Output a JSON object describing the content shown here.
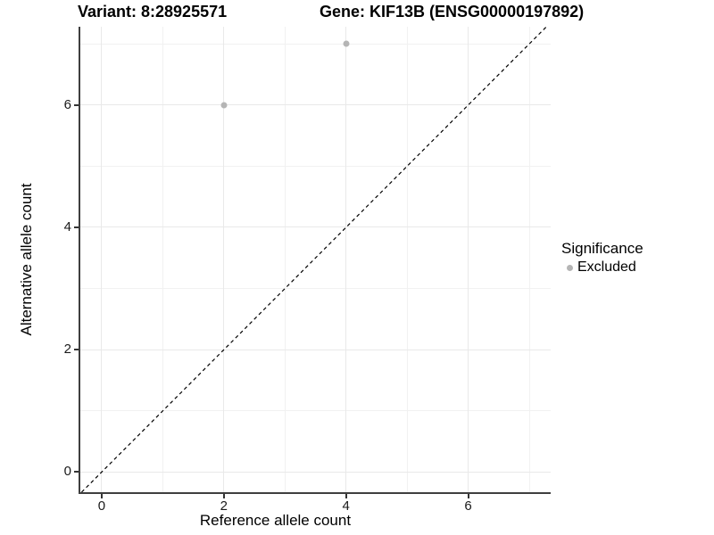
{
  "chart_data": {
    "type": "scatter",
    "titles": {
      "left": "Variant: 8:28925571",
      "right": "Gene: KIF13B (ENSG00000197892)"
    },
    "xlabel": "Reference allele count",
    "ylabel": "Alternative allele count",
    "x_ticks": [
      0,
      2,
      4,
      6
    ],
    "x_minor_gridlines": [
      1,
      3,
      5,
      7
    ],
    "y_ticks": [
      0,
      2,
      4,
      6
    ],
    "y_minor_gridlines": [
      1,
      3,
      5,
      7
    ],
    "xlim": [
      -0.35,
      7.35
    ],
    "ylim": [
      -0.33,
      7.28
    ],
    "grid": "major+minor",
    "legend_position": "right-middle",
    "series": [
      {
        "name": "Excluded",
        "color": "#b5b5b5",
        "points": [
          {
            "x": 2,
            "y": 6
          },
          {
            "x": 4,
            "y": 7
          }
        ]
      }
    ],
    "identity_line": {
      "style": "dashed",
      "slope": 1,
      "intercept": 0,
      "color": "#000000"
    },
    "legend": {
      "title": "Significance",
      "items": [
        {
          "label": "Excluded",
          "color": "#b5b5b5"
        }
      ]
    }
  }
}
